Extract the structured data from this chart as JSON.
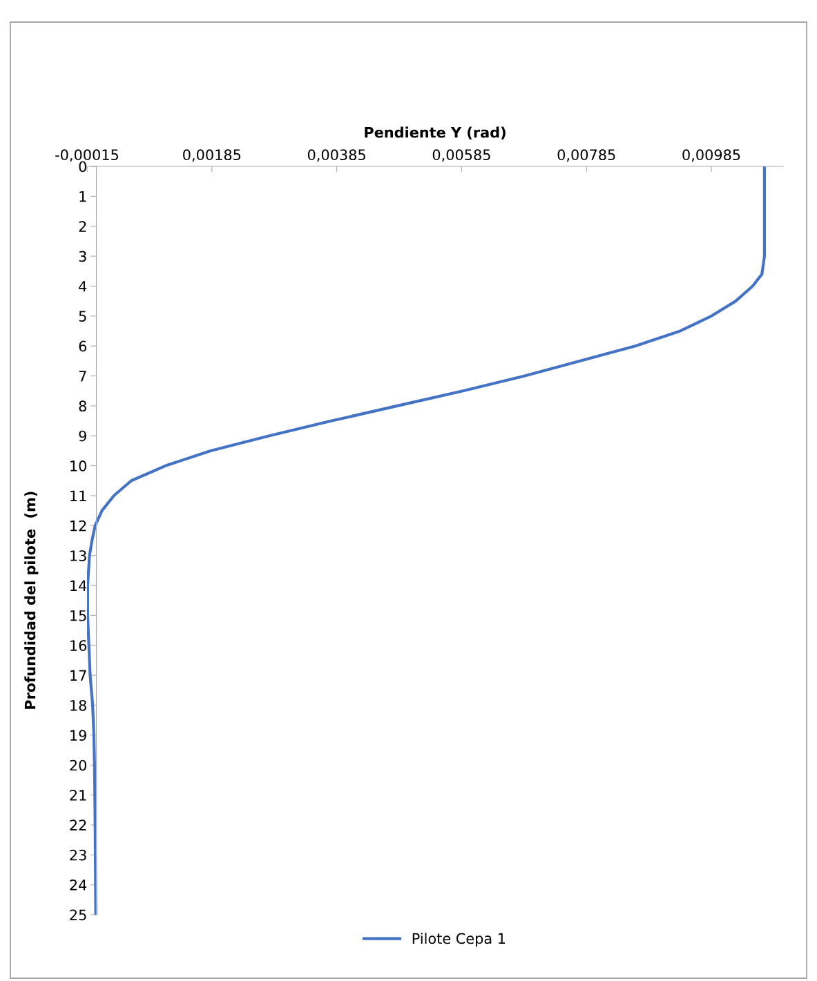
{
  "chart_data": {
    "type": "line",
    "xlabel": "Pendiente Y (rad)",
    "ylabel": "Profundidad del pilote  (m)",
    "series": [
      {
        "name": "Pilote Cepa 1",
        "color": "#4472c4",
        "x": [
          0.0107,
          0.0107,
          0.01066,
          0.01051,
          0.01024,
          0.00985,
          0.00935,
          0.00863,
          0.00775,
          0.00686,
          0.00587,
          0.00482,
          0.00377,
          0.00277,
          0.00183,
          0.00111,
          0.00056,
          0.00028,
          9e-05,
          -2e-05,
          -7e-05,
          -0.00011,
          -0.00014,
          -0.00014,
          -0.00012,
          -0.0001,
          -6e-05,
          -4e-05,
          -3e-05,
          -2e-05,
          -1e-05
        ],
        "values": [
          0,
          3,
          3.6,
          4,
          4.5,
          5,
          5.5,
          6,
          6.5,
          7,
          7.5,
          8,
          8.5,
          9,
          9.5,
          10,
          10.5,
          11,
          11.5,
          12,
          12.5,
          13,
          14,
          15,
          16,
          17,
          18,
          19,
          20,
          22,
          25
        ]
      }
    ],
    "xlim": [
      -0.00015,
      0.011
    ],
    "xticks": [
      {
        "value": -0.00015,
        "label": "-0,00015"
      },
      {
        "value": 0.00185,
        "label": "0,00185"
      },
      {
        "value": 0.00385,
        "label": "0,00385"
      },
      {
        "value": 0.00585,
        "label": "0,00585"
      },
      {
        "value": 0.00785,
        "label": "0,00785"
      },
      {
        "value": 0.00985,
        "label": "0,00985"
      }
    ],
    "ylim": [
      25,
      0
    ],
    "yticks": [
      0,
      1,
      2,
      3,
      4,
      5,
      6,
      7,
      8,
      9,
      10,
      11,
      12,
      13,
      14,
      15,
      16,
      17,
      18,
      19,
      20,
      21,
      22,
      23,
      24,
      25
    ],
    "grid": false,
    "legend": "bottom",
    "marker": "none",
    "line_style": "solid"
  }
}
